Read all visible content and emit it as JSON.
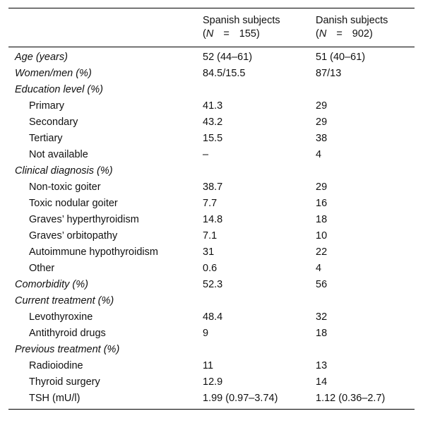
{
  "table": {
    "header": {
      "col1_title": "Spanish subjects",
      "col1_n_letter": "N",
      "col1_n_eq": "=",
      "col1_n_value": "155",
      "col2_title": "Danish subjects",
      "col2_n_letter": "N",
      "col2_n_eq": "=",
      "col2_n_value": "902"
    },
    "rows": [
      {
        "label": "Age (years)",
        "spanish": "52 (44–61)",
        "danish": "51 (40–61)"
      },
      {
        "label": "Women/men (%)",
        "spanish": "84.5/15.5",
        "danish": "87/13"
      },
      {
        "label": "Education level (%)",
        "spanish": "",
        "danish": ""
      },
      {
        "label": "Primary",
        "spanish": "41.3",
        "danish": "29"
      },
      {
        "label": "Secondary",
        "spanish": "43.2",
        "danish": "29"
      },
      {
        "label": "Tertiary",
        "spanish": "15.5",
        "danish": "38"
      },
      {
        "label": "Not available",
        "spanish": "–",
        "danish": "4"
      },
      {
        "label": "Clinical diagnosis (%)",
        "spanish": "",
        "danish": ""
      },
      {
        "label": "Non-toxic goiter",
        "spanish": "38.7",
        "danish": "29"
      },
      {
        "label": "Toxic nodular goiter",
        "spanish": "7.7",
        "danish": "16"
      },
      {
        "label": "Graves’ hyperthyroidism",
        "spanish": "14.8",
        "danish": "18"
      },
      {
        "label": "Graves’ orbitopathy",
        "spanish": "7.1",
        "danish": "10"
      },
      {
        "label": "Autoimmune hypothyroidism",
        "spanish": "31",
        "danish": "22"
      },
      {
        "label": "Other",
        "spanish": "0.6",
        "danish": "4"
      },
      {
        "label": "Comorbidity (%)",
        "spanish": "52.3",
        "danish": "56"
      },
      {
        "label": "Current treatment (%)",
        "spanish": "",
        "danish": ""
      },
      {
        "label": "Levothyroxine",
        "spanish": "48.4",
        "danish": "32"
      },
      {
        "label": "Antithyroid drugs",
        "spanish": "9",
        "danish": "18"
      },
      {
        "label": "Previous treatment (%)",
        "spanish": "",
        "danish": ""
      },
      {
        "label": "Radioiodine",
        "spanish": "11",
        "danish": "13"
      },
      {
        "label": "Thyroid surgery",
        "spanish": "12.9",
        "danish": "14"
      },
      {
        "label": "TSH (mU/l)",
        "spanish": "1.99 (0.97–3.74)",
        "danish": "1.12 (0.36–2.7)"
      }
    ]
  }
}
